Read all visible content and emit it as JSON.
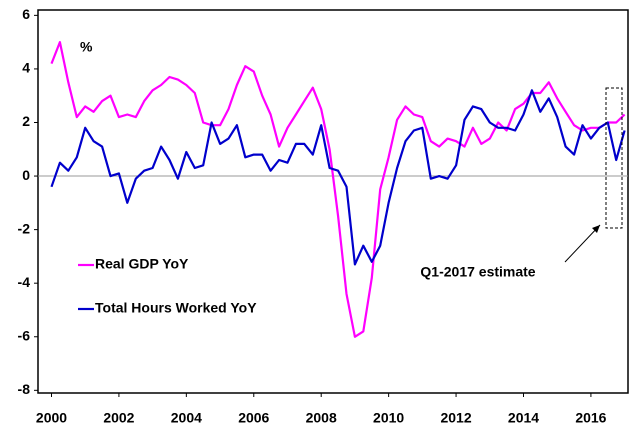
{
  "chart_data": {
    "type": "line",
    "y_unit": "%",
    "annotation": "Q1-2017 estimate",
    "x": [
      2000,
      2000.25,
      2000.5,
      2000.75,
      2001,
      2001.25,
      2001.5,
      2001.75,
      2002,
      2002.25,
      2002.5,
      2002.75,
      2003,
      2003.25,
      2003.5,
      2003.75,
      2004,
      2004.25,
      2004.5,
      2004.75,
      2005,
      2005.25,
      2005.5,
      2005.75,
      2006,
      2006.25,
      2006.5,
      2006.75,
      2007,
      2007.25,
      2007.5,
      2007.75,
      2008,
      2008.25,
      2008.5,
      2008.75,
      2009,
      2009.25,
      2009.5,
      2009.75,
      2010,
      2010.25,
      2010.5,
      2010.75,
      2011,
      2011.25,
      2011.5,
      2011.75,
      2012,
      2012.25,
      2012.5,
      2012.75,
      2013,
      2013.25,
      2013.5,
      2013.75,
      2014,
      2014.25,
      2014.5,
      2014.75,
      2015,
      2015.25,
      2015.5,
      2015.75,
      2016,
      2016.25,
      2016.5,
      2016.75,
      2017
    ],
    "series": [
      {
        "name": "Real GDP YoY",
        "color": "#ff00ff",
        "values": [
          4.2,
          5.0,
          3.5,
          2.2,
          2.6,
          2.4,
          2.8,
          3.0,
          2.2,
          2.3,
          2.2,
          2.8,
          3.2,
          3.4,
          3.7,
          3.6,
          3.4,
          3.1,
          2.0,
          1.9,
          1.9,
          2.5,
          3.4,
          4.1,
          3.9,
          3.0,
          2.3,
          1.1,
          1.8,
          2.3,
          2.8,
          3.3,
          2.5,
          1.0,
          -1.5,
          -4.4,
          -6.0,
          -5.8,
          -3.8,
          -0.5,
          0.7,
          2.1,
          2.6,
          2.3,
          2.2,
          1.3,
          1.1,
          1.4,
          1.3,
          1.1,
          1.8,
          1.2,
          1.4,
          2.0,
          1.7,
          2.5,
          2.7,
          3.1,
          3.1,
          3.5,
          2.9,
          2.4,
          1.9,
          1.7,
          1.8,
          1.8,
          2.0,
          2.0,
          2.3
        ]
      },
      {
        "name": "Total Hours Worked YoY",
        "color": "#0000cc",
        "values": [
          -0.4,
          0.5,
          0.2,
          0.7,
          1.8,
          1.3,
          1.1,
          0.0,
          0.1,
          -1.0,
          -0.1,
          0.2,
          0.3,
          1.1,
          0.6,
          -0.1,
          0.9,
          0.3,
          0.4,
          2.0,
          1.2,
          1.4,
          1.9,
          0.7,
          0.8,
          0.8,
          0.2,
          0.6,
          0.5,
          1.2,
          1.2,
          0.8,
          1.9,
          0.3,
          0.2,
          -0.4,
          -3.3,
          -2.6,
          -3.2,
          -2.6,
          -1.0,
          0.3,
          1.3,
          1.7,
          1.8,
          -0.1,
          0.0,
          -0.1,
          0.4,
          2.1,
          2.6,
          2.5,
          2.0,
          1.8,
          1.8,
          1.7,
          2.3,
          3.2,
          2.4,
          2.9,
          2.2,
          1.1,
          0.8,
          1.9,
          1.4,
          1.8,
          2.0,
          0.6,
          1.7
        ]
      }
    ],
    "xlim": [
      1999.6,
      2017.1
    ],
    "xticks": [
      2000,
      2002,
      2004,
      2006,
      2008,
      2010,
      2012,
      2014,
      2016
    ],
    "ylim": [
      -8.1,
      6.2
    ],
    "yticks": [
      -8,
      -6,
      -4,
      -2,
      0,
      2,
      4,
      6
    ],
    "zero_line": true,
    "legend": "center-left"
  }
}
